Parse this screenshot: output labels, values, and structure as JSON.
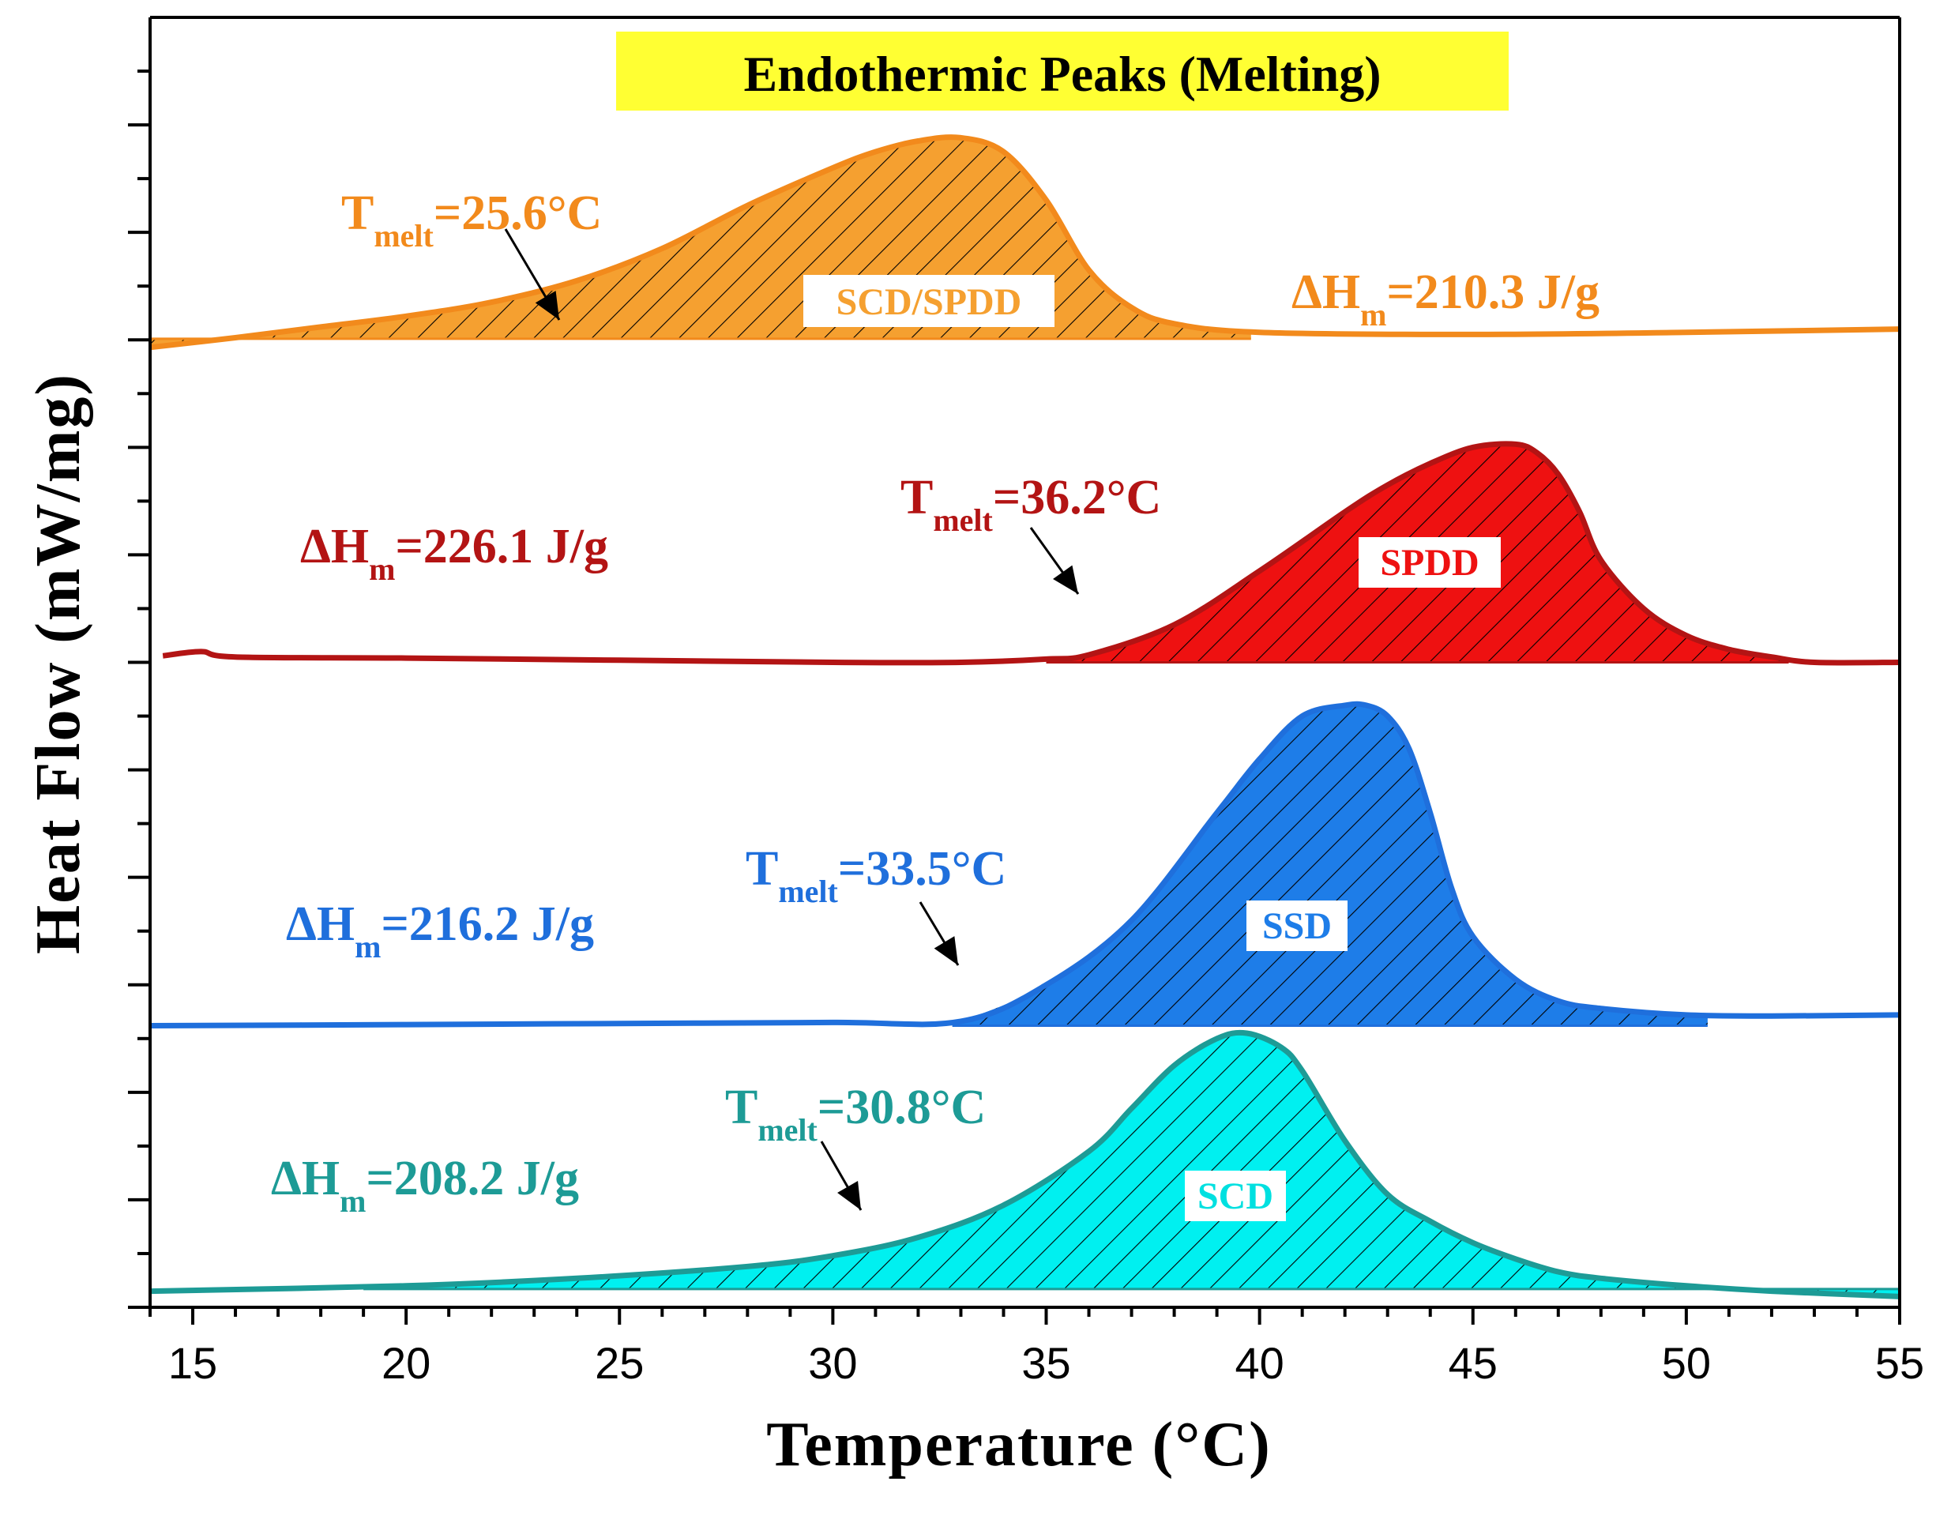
{
  "chart_data": {
    "type": "area",
    "title": "Endothermic Peaks (Melting)",
    "title_highlight": "#ffff33",
    "xlabel": "Temperature (°C)",
    "ylabel": "Heat Flow (mW/mg)",
    "xlim": [
      14,
      55
    ],
    "x_ticks": [
      15,
      20,
      25,
      30,
      35,
      40,
      45,
      50,
      55
    ],
    "x_tick_labels": [
      "15",
      "20",
      "25",
      "30",
      "35",
      "40",
      "45",
      "50",
      "55"
    ],
    "ylim": [
      0,
      12
    ],
    "y_tick_labels_shown": false,
    "series": [
      {
        "name": "SCD/SPDD",
        "edge_color": "#f28a1c",
        "fill_color": "#f5a030",
        "baseline": 9.01,
        "tmelt_label": "T",
        "tmelt_sub": "melt",
        "tmelt_value": "=25.6°C",
        "dh_label": "ΔH",
        "dh_sub": "m",
        "dh_value": "=210.3 J/g",
        "points": [
          [
            14,
            8.93
          ],
          [
            16,
            9.02
          ],
          [
            18,
            9.12
          ],
          [
            20,
            9.22
          ],
          [
            22,
            9.35
          ],
          [
            24,
            9.55
          ],
          [
            26,
            9.85
          ],
          [
            28,
            10.25
          ],
          [
            30,
            10.6
          ],
          [
            31,
            10.75
          ],
          [
            32,
            10.85
          ],
          [
            33,
            10.88
          ],
          [
            34,
            10.75
          ],
          [
            35,
            10.3
          ],
          [
            36,
            9.65
          ],
          [
            37,
            9.3
          ],
          [
            38,
            9.15
          ],
          [
            40,
            9.07
          ],
          [
            45,
            9.05
          ],
          [
            50,
            9.07
          ],
          [
            55,
            9.1
          ]
        ],
        "fill_range": [
          14,
          39.8
        ]
      },
      {
        "name": "SPDD",
        "edge_color": "#b31414",
        "fill_color": "#ee1111",
        "baseline": 6.0,
        "tmelt_label": "T",
        "tmelt_sub": "melt",
        "tmelt_value": "=36.2°C",
        "dh_label": "ΔH",
        "dh_sub": "m",
        "dh_value": "=226.1 J/g",
        "points": [
          [
            14.3,
            6.06
          ],
          [
            15.2,
            6.1
          ],
          [
            16,
            6.05
          ],
          [
            20,
            6.04
          ],
          [
            25,
            6.02
          ],
          [
            30,
            6.0
          ],
          [
            33,
            6.0
          ],
          [
            35,
            6.03
          ],
          [
            36,
            6.07
          ],
          [
            38,
            6.35
          ],
          [
            40,
            6.85
          ],
          [
            42,
            7.4
          ],
          [
            43,
            7.65
          ],
          [
            44,
            7.85
          ],
          [
            45,
            8.0
          ],
          [
            46,
            8.03
          ],
          [
            46.5,
            7.95
          ],
          [
            47,
            7.75
          ],
          [
            47.5,
            7.4
          ],
          [
            48,
            6.95
          ],
          [
            49,
            6.5
          ],
          [
            50,
            6.25
          ],
          [
            51,
            6.12
          ],
          [
            52,
            6.05
          ],
          [
            53,
            6.0
          ],
          [
            55,
            6.0
          ]
        ],
        "fill_range": [
          35,
          52.4
        ]
      },
      {
        "name": "SSD",
        "edge_color": "#1f6fdc",
        "fill_color": "#1e7de8",
        "baseline": 2.62,
        "tmelt_label": "T",
        "tmelt_sub": "melt",
        "tmelt_value": "=33.5°C",
        "dh_label": "ΔH",
        "dh_sub": "m",
        "dh_value": "=216.2 J/g",
        "points": [
          [
            14,
            2.62
          ],
          [
            20,
            2.63
          ],
          [
            25,
            2.64
          ],
          [
            30,
            2.65
          ],
          [
            33,
            2.66
          ],
          [
            35,
            3.0
          ],
          [
            37,
            3.6
          ],
          [
            39,
            4.6
          ],
          [
            40,
            5.1
          ],
          [
            41,
            5.5
          ],
          [
            42,
            5.6
          ],
          [
            42.5,
            5.6
          ],
          [
            43,
            5.5
          ],
          [
            43.5,
            5.2
          ],
          [
            44,
            4.6
          ],
          [
            44.5,
            3.9
          ],
          [
            45,
            3.45
          ],
          [
            46,
            3.05
          ],
          [
            47,
            2.85
          ],
          [
            48,
            2.78
          ],
          [
            50,
            2.72
          ],
          [
            52,
            2.71
          ],
          [
            55,
            2.72
          ]
        ],
        "fill_range": [
          32.8,
          50.5
        ]
      },
      {
        "name": "SCD",
        "edge_color": "#1d9b96",
        "fill_color": "#00f0f0",
        "baseline": 0.17,
        "tmelt_label": "T",
        "tmelt_sub": "melt",
        "tmelt_value": "=30.8°C",
        "dh_label": "ΔH",
        "dh_sub": "m",
        "dh_value": "=208.2 J/g",
        "points": [
          [
            14,
            0.15
          ],
          [
            20,
            0.2
          ],
          [
            24,
            0.27
          ],
          [
            28,
            0.38
          ],
          [
            30,
            0.48
          ],
          [
            32,
            0.65
          ],
          [
            34,
            0.95
          ],
          [
            36,
            1.45
          ],
          [
            37,
            1.85
          ],
          [
            38,
            2.25
          ],
          [
            39,
            2.5
          ],
          [
            39.7,
            2.55
          ],
          [
            40.5,
            2.42
          ],
          [
            41,
            2.2
          ],
          [
            42,
            1.55
          ],
          [
            43,
            1.05
          ],
          [
            44,
            0.8
          ],
          [
            45,
            0.6
          ],
          [
            46,
            0.45
          ],
          [
            47,
            0.33
          ],
          [
            48,
            0.27
          ],
          [
            50,
            0.2
          ],
          [
            52,
            0.15
          ],
          [
            55,
            0.1
          ]
        ],
        "fill_range": [
          19,
          55
        ]
      }
    ]
  }
}
